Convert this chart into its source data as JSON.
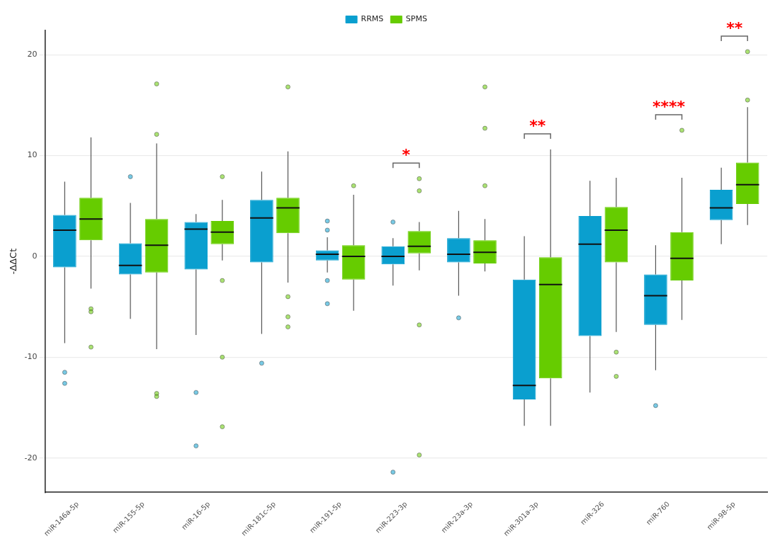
{
  "chart_data": {
    "type": "box",
    "ylabel": "-ΔΔCt",
    "categories": [
      "miR-146a-5p",
      "miR-155-5p",
      "miR-16-5p",
      "miR-181c-5p",
      "miR-191-5p",
      "miR-223-3p",
      "miR-23a-3p",
      "miR-301a-3p",
      "miR-326",
      "miR-760",
      "miR-98-5p"
    ],
    "series": [
      {
        "name": "RRMS",
        "color": "#0a9fcf",
        "boxes": [
          {
            "low": -8.6,
            "q1": -1.1,
            "median": 2.6,
            "q3": 4.1,
            "high": 7.4,
            "outliers": [
              -11.5,
              -12.6
            ]
          },
          {
            "low": -6.2,
            "q1": -1.8,
            "median": -0.9,
            "q3": 1.3,
            "high": 5.3,
            "outliers": [
              7.9
            ]
          },
          {
            "low": -7.8,
            "q1": -1.3,
            "median": 2.7,
            "q3": 3.4,
            "high": 4.2,
            "outliers": [
              -13.5,
              -18.8
            ]
          },
          {
            "low": -7.7,
            "q1": -0.6,
            "median": 3.8,
            "q3": 5.6,
            "high": 8.4,
            "outliers": [
              -10.6
            ]
          },
          {
            "low": -1.6,
            "q1": -0.4,
            "median": 0.2,
            "q3": 0.6,
            "high": 1.9,
            "outliers": [
              3.5,
              2.6,
              -2.4,
              -4.7
            ]
          },
          {
            "low": -2.9,
            "q1": -0.8,
            "median": 0,
            "q3": 1,
            "high": 1.8,
            "outliers": [
              3.4,
              -21.4
            ]
          },
          {
            "low": -3.9,
            "q1": -0.6,
            "median": 0.2,
            "q3": 1.8,
            "high": 4.5,
            "outliers": [
              -6.1
            ]
          },
          {
            "low": -16.8,
            "q1": -14.2,
            "median": -12.8,
            "q3": -2.3,
            "high": 2
          },
          {
            "low": -13.5,
            "q1": -7.9,
            "median": 1.2,
            "q3": 4,
            "high": 7.5
          },
          {
            "low": -11.3,
            "q1": -6.8,
            "median": -3.9,
            "q3": -1.8,
            "high": 1.1,
            "outliers": [
              -14.8
            ]
          },
          {
            "low": 1.2,
            "q1": 3.6,
            "median": 4.8,
            "q3": 6.6,
            "high": 8.8
          }
        ]
      },
      {
        "name": "SPMS",
        "color": "#66cc00",
        "boxes": [
          {
            "low": -3.2,
            "q1": 1.6,
            "median": 3.7,
            "q3": 5.8,
            "high": 11.8,
            "outliers": [
              -5.2,
              -5.5,
              -9
            ]
          },
          {
            "low": -9.2,
            "q1": -1.6,
            "median": 1.1,
            "q3": 3.7,
            "high": 11.2,
            "outliers": [
              17.1,
              12.1,
              -13.6,
              -13.9
            ]
          },
          {
            "low": -0.4,
            "q1": 1.2,
            "median": 2.4,
            "q3": 3.5,
            "high": 5.6,
            "outliers": [
              7.9,
              -2.4,
              -10,
              -16.9
            ]
          },
          {
            "low": -2.6,
            "q1": 2.3,
            "median": 4.8,
            "q3": 5.8,
            "high": 10.4,
            "outliers": [
              16.8,
              -4,
              -6,
              -7
            ]
          },
          {
            "low": -5.4,
            "q1": -2.3,
            "median": 0,
            "q3": 1.1,
            "high": 6.1,
            "outliers": [
              7
            ]
          },
          {
            "low": -1.4,
            "q1": 0.3,
            "median": 1,
            "q3": 2.5,
            "high": 3.4,
            "outliers": [
              7.7,
              6.5,
              -6.8,
              -19.7
            ]
          },
          {
            "low": -1.5,
            "q1": -0.7,
            "median": 0.4,
            "q3": 1.6,
            "high": 3.7,
            "outliers": [
              16.8,
              12.7,
              7
            ]
          },
          {
            "low": -16.8,
            "q1": -12.1,
            "median": -2.8,
            "q3": -0.1,
            "high": 10.6
          },
          {
            "low": -7.5,
            "q1": -0.6,
            "median": 2.6,
            "q3": 4.9,
            "high": 7.8,
            "outliers": [
              -9.5,
              -11.9
            ]
          },
          {
            "low": -6.3,
            "q1": -2.4,
            "median": -0.2,
            "q3": 2.4,
            "high": 7.8,
            "outliers": [
              12.5
            ]
          },
          {
            "low": 3.1,
            "q1": 5.2,
            "median": 7.1,
            "q3": 9.3,
            "high": 14.8,
            "outliers": [
              20.3,
              15.5
            ]
          }
        ]
      }
    ],
    "ylim": [
      -23.4,
      22.4
    ],
    "yticks": [
      -20,
      -10,
      0,
      10,
      20
    ],
    "grid": "y",
    "legend": "top",
    "annotations": [
      "*",
      "**",
      "****",
      "**"
    ]
  }
}
